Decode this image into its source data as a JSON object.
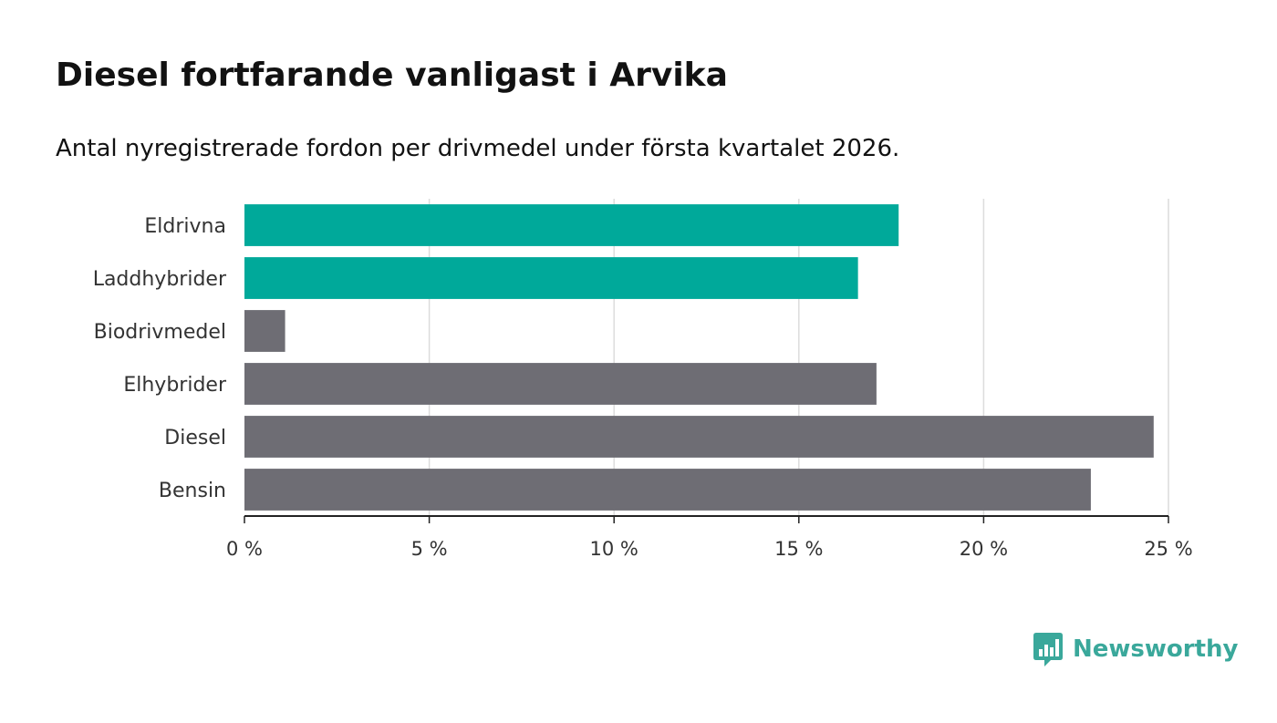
{
  "header": {
    "title": "Diesel fortfarande vanligast i Arvika",
    "subtitle": "Antal nyregistrerade fordon per drivmedel under första kvartalet 2026."
  },
  "chart_data": {
    "type": "bar",
    "orientation": "horizontal",
    "title": "Diesel fortfarande vanligast i Arvika",
    "subtitle": "Antal nyregistrerade fordon per drivmedel under första kvartalet 2026.",
    "categories": [
      "Eldrivna",
      "Laddhybrider",
      "Biodrivmedel",
      "Elhybrider",
      "Diesel",
      "Bensin"
    ],
    "values": [
      17.7,
      16.6,
      1.1,
      17.1,
      24.6,
      22.9
    ],
    "colors": [
      "#00a99a",
      "#00a99a",
      "#6e6d74",
      "#6e6d74",
      "#6e6d74",
      "#6e6d74"
    ],
    "xlabel": "",
    "ylabel": "",
    "xlim": [
      0,
      25
    ],
    "ticks": [
      0,
      5,
      10,
      15,
      20,
      25
    ],
    "tick_labels": [
      "0 %",
      "5 %",
      "10 %",
      "15 %",
      "20 %",
      "25 %"
    ],
    "grid": true
  },
  "brand": {
    "name": "Newsworthy",
    "color": "#3aa89b",
    "icon": "newsworthy-logo-icon"
  }
}
